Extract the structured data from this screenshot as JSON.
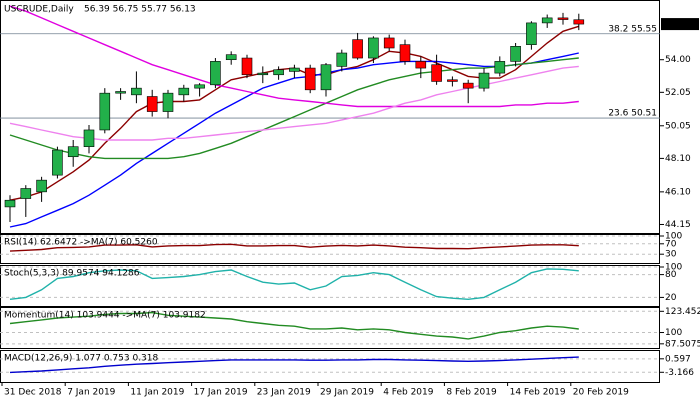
{
  "chart_data": [
    {
      "type": "candlestick",
      "title": "USCRUDE,Daily",
      "subtitle": "56.39 56.75 55.77 56.13",
      "categories": [
        "31 Dec 2018",
        null,
        null,
        null,
        "7 Jan 2019",
        null,
        null,
        null,
        "11 Jan 2019",
        null,
        null,
        null,
        "17 Jan 2019",
        null,
        null,
        null,
        "23 Jan 2019",
        null,
        null,
        null,
        "29 Jan 2019",
        null,
        null,
        null,
        "4 Feb 2019",
        null,
        null,
        null,
        "8 Feb 2019",
        null,
        null,
        null,
        "14 Feb 2019",
        null,
        null,
        null,
        "20 Feb 2019"
      ],
      "open": [
        45.2,
        45.7,
        46.1,
        47.1,
        48.2,
        48.8,
        49.8,
        52.0,
        51.9,
        51.8,
        50.9,
        51.9,
        52.3,
        52.5,
        54.0,
        54.1,
        53.1,
        53.1,
        53.3,
        53.5,
        52.2,
        53.6,
        55.2,
        54.1,
        55.3,
        54.9,
        53.9,
        53.7,
        52.8,
        52.6,
        52.3,
        53.2,
        53.9,
        54.9,
        56.2,
        56.5,
        56.39
      ],
      "high": [
        45.9,
        46.5,
        47.0,
        48.8,
        49.2,
        50.1,
        52.3,
        52.3,
        53.3,
        52.2,
        52.2,
        52.5,
        52.6,
        54.1,
        54.5,
        54.3,
        53.6,
        53.6,
        53.7,
        53.7,
        53.8,
        54.6,
        55.6,
        55.4,
        55.5,
        55.2,
        54.2,
        54.3,
        53.0,
        52.8,
        53.5,
        54.2,
        55.0,
        56.3,
        56.7,
        56.8,
        56.75
      ],
      "low": [
        44.3,
        44.6,
        45.5,
        46.9,
        47.6,
        48.4,
        49.6,
        51.6,
        51.4,
        50.6,
        50.5,
        51.5,
        51.8,
        52.3,
        53.7,
        52.9,
        52.6,
        52.8,
        52.9,
        52.0,
        51.8,
        53.3,
        54.0,
        53.8,
        54.5,
        53.7,
        52.9,
        52.5,
        52.4,
        51.4,
        52.1,
        53.0,
        53.6,
        54.6,
        55.9,
        56.1,
        55.77
      ],
      "close": [
        45.6,
        46.3,
        46.8,
        48.6,
        48.8,
        49.8,
        52.0,
        52.1,
        52.3,
        50.9,
        52.0,
        52.3,
        52.5,
        53.9,
        54.3,
        53.1,
        53.2,
        53.4,
        53.5,
        52.2,
        53.7,
        54.4,
        54.1,
        55.3,
        54.7,
        53.9,
        53.5,
        52.7,
        52.7,
        52.3,
        53.2,
        53.9,
        54.8,
        56.2,
        56.5,
        56.4,
        56.13
      ],
      "up_color": "#22b04a",
      "down_color": "#ff0000",
      "series": [
        {
          "color": "#8b0000",
          "values": [
            45.6,
            45.8,
            46.1,
            46.7,
            47.3,
            48.0,
            49.0,
            49.9,
            50.9,
            51.4,
            51.5,
            51.5,
            51.6,
            52.2,
            52.8,
            53.0,
            53.2,
            53.4,
            53.5,
            53.1,
            53.1,
            53.4,
            53.6,
            54.0,
            54.5,
            54.4,
            54.2,
            53.8,
            53.4,
            53.0,
            52.9,
            52.9,
            53.4,
            54.2,
            55.0,
            55.7,
            56.0
          ]
        },
        {
          "color": "#0000ff",
          "values": [
            44.0,
            44.2,
            44.6,
            45.0,
            45.4,
            45.9,
            46.5,
            47.1,
            47.8,
            48.4,
            49.0,
            49.6,
            50.2,
            50.8,
            51.3,
            51.8,
            52.3,
            52.6,
            52.9,
            53.0,
            53.2,
            53.4,
            53.5,
            53.7,
            53.8,
            53.9,
            53.9,
            53.9,
            53.8,
            53.7,
            53.6,
            53.6,
            53.7,
            53.8,
            54.0,
            54.2,
            54.4
          ]
        },
        {
          "color": "#228b22",
          "values": [
            49.5,
            49.2,
            48.9,
            48.6,
            48.4,
            48.2,
            48.1,
            48.1,
            48.1,
            48.1,
            48.1,
            48.2,
            48.4,
            48.7,
            49.0,
            49.4,
            49.8,
            50.2,
            50.6,
            51.0,
            51.4,
            51.8,
            52.2,
            52.5,
            52.8,
            53.0,
            53.2,
            53.3,
            53.4,
            53.5,
            53.5,
            53.6,
            53.7,
            53.8,
            53.9,
            54.0,
            54.1
          ]
        },
        {
          "color": "#e000e0",
          "values": [
            57.2,
            56.9,
            56.5,
            56.1,
            55.7,
            55.3,
            54.9,
            54.5,
            54.1,
            53.7,
            53.4,
            53.1,
            52.8,
            52.5,
            52.3,
            52.1,
            51.9,
            51.7,
            51.6,
            51.5,
            51.4,
            51.3,
            51.2,
            51.2,
            51.2,
            51.2,
            51.2,
            51.2,
            51.2,
            51.2,
            51.2,
            51.2,
            51.3,
            51.3,
            51.4,
            51.4,
            51.5
          ]
        },
        {
          "color": "#ee82ee",
          "values": [
            50.2,
            50.0,
            49.8,
            49.6,
            49.4,
            49.3,
            49.2,
            49.2,
            49.2,
            49.2,
            49.3,
            49.3,
            49.4,
            49.5,
            49.6,
            49.7,
            49.8,
            49.9,
            50.0,
            50.1,
            50.2,
            50.4,
            50.6,
            50.8,
            51.1,
            51.4,
            51.6,
            51.9,
            52.1,
            52.3,
            52.5,
            52.7,
            52.9,
            53.1,
            53.3,
            53.5,
            53.6
          ]
        }
      ],
      "ylim": [
        43.7,
        57.45
      ],
      "yticks": [
        44.15,
        {
          "value": 46.1,
          "label": "46.10"
        },
        {
          "value": 48.1,
          "label": "48.10"
        },
        50.05,
        52.05,
        {
          "value": 54.0,
          "label": "54.00"
        }
      ],
      "annotations": [
        {
          "value": 55.55,
          "label": "38.2 55.55"
        },
        {
          "value": 50.51,
          "label": "23.6 50.51"
        }
      ],
      "last_price": 56.13
    },
    {
      "type": "line",
      "title": "RSI(14) 62.6472 ->MA(7) 60.5260",
      "ylim": [
        0,
        100
      ],
      "yticks": [
        100,
        70,
        30
      ],
      "series": [
        {
          "color": "#8b0000",
          "values": [
            42,
            45,
            48,
            55,
            56,
            58,
            65,
            65,
            66,
            58,
            62,
            63,
            63,
            67,
            68,
            62,
            62,
            63,
            63,
            57,
            61,
            64,
            62,
            65,
            62,
            57,
            55,
            52,
            52,
            51,
            55,
            58,
            61,
            65,
            66,
            66,
            62.6472
          ]
        }
      ]
    },
    {
      "type": "line",
      "title": "Stoch(5,3,3) 89.9574 94.1286",
      "ylim": [
        0,
        100
      ],
      "yticks": [
        100,
        80,
        20
      ],
      "series": [
        {
          "color": "#20b2aa",
          "values": [
            15,
            20,
            40,
            70,
            75,
            85,
            90,
            92,
            90,
            70,
            72,
            75,
            80,
            88,
            92,
            75,
            60,
            55,
            58,
            40,
            50,
            75,
            78,
            85,
            80,
            60,
            40,
            22,
            18,
            15,
            20,
            40,
            60,
            85,
            95,
            94,
            89.9574
          ]
        }
      ]
    },
    {
      "type": "line",
      "title": "Momentum(14) 103.9444 ->MA(7) 103.9182",
      "ylim": [
        84,
        126
      ],
      "yticks": [
        123.4525,
        100,
        87.5075
      ],
      "series": [
        {
          "color": "#228b22",
          "values": [
            110,
            112,
            114,
            116,
            117,
            118,
            120,
            121,
            121,
            122,
            119,
            118,
            117,
            116,
            115,
            112,
            110,
            108,
            107,
            104,
            104,
            105,
            103,
            104,
            103,
            100,
            98,
            96,
            95,
            93,
            96,
            100,
            102,
            105,
            107,
            106,
            103.9444
          ]
        }
      ]
    },
    {
      "type": "line",
      "title": "MACD(12,26,9) 1.077 0.753 0.318",
      "ylim": [
        -5.6,
        2.5
      ],
      "yticks": [
        0.597,
        -3.166
      ],
      "series": [
        {
          "color": "#0000cd",
          "values": [
            -3.2,
            -3.0,
            -2.8,
            -2.5,
            -2.2,
            -1.9,
            -1.5,
            -1.2,
            -0.9,
            -0.7,
            -0.5,
            -0.3,
            -0.1,
            0.1,
            0.3,
            0.3,
            0.3,
            0.3,
            0.3,
            0.2,
            0.2,
            0.3,
            0.3,
            0.4,
            0.4,
            0.3,
            0.2,
            0.1,
            0.0,
            -0.1,
            0.0,
            0.1,
            0.3,
            0.5,
            0.7,
            0.9,
            1.077
          ]
        }
      ]
    }
  ]
}
